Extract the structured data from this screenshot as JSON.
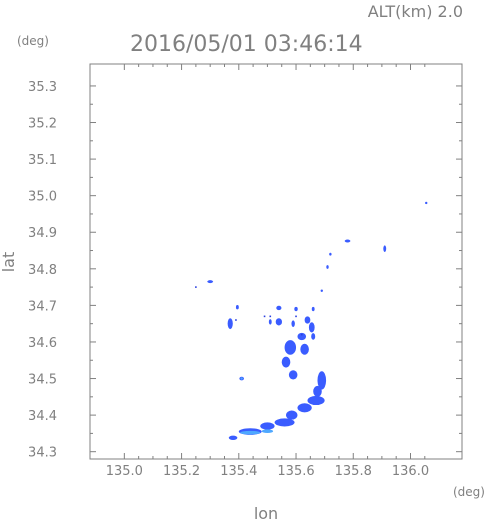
{
  "header": {
    "altitude_label": "ALT(km) 2.0",
    "timestamp": "2016/05/01 03:46:14",
    "lat_unit": "(deg)",
    "lon_unit": "(deg)"
  },
  "chart_data": {
    "type": "scatter",
    "title": "2016/05/01 03:46:14",
    "xlabel": "lon",
    "ylabel": "lat",
    "xlim": [
      134.88,
      136.18
    ],
    "ylim": [
      34.28,
      35.36
    ],
    "xticks": [
      "135.0",
      "135.2",
      "135.4",
      "135.6",
      "135.8",
      "136.0"
    ],
    "yticks": [
      "34.3",
      "34.4",
      "34.5",
      "34.6",
      "34.7",
      "34.8",
      "34.9",
      "35.0",
      "35.1",
      "35.2",
      "35.3"
    ],
    "grid": false,
    "colors": {
      "axis": "#808080",
      "echo_main": "#3a5cff",
      "echo_dark": "#2a3fe0",
      "echo_light": "#4fa8ff"
    },
    "echoes": [
      {
        "lon": 135.3,
        "lat": 34.765,
        "w": 0.02,
        "h": 0.008
      },
      {
        "lon": 135.78,
        "lat": 34.876,
        "w": 0.02,
        "h": 0.008
      },
      {
        "lon": 135.91,
        "lat": 34.855,
        "w": 0.01,
        "h": 0.018
      },
      {
        "lon": 135.72,
        "lat": 34.84,
        "w": 0.005,
        "h": 0.008
      },
      {
        "lon": 135.71,
        "lat": 34.805,
        "w": 0.005,
        "h": 0.01
      },
      {
        "lon": 135.69,
        "lat": 34.74,
        "w": 0.004,
        "h": 0.004
      },
      {
        "lon": 135.395,
        "lat": 34.695,
        "w": 0.01,
        "h": 0.012
      },
      {
        "lon": 135.54,
        "lat": 34.693,
        "w": 0.018,
        "h": 0.012
      },
      {
        "lon": 135.6,
        "lat": 34.69,
        "w": 0.012,
        "h": 0.012
      },
      {
        "lon": 135.66,
        "lat": 34.69,
        "w": 0.01,
        "h": 0.012
      },
      {
        "lon": 135.64,
        "lat": 34.66,
        "w": 0.02,
        "h": 0.02
      },
      {
        "lon": 135.37,
        "lat": 34.65,
        "w": 0.018,
        "h": 0.03
      },
      {
        "lon": 135.51,
        "lat": 34.655,
        "w": 0.01,
        "h": 0.015
      },
      {
        "lon": 135.54,
        "lat": 34.655,
        "w": 0.022,
        "h": 0.02
      },
      {
        "lon": 135.59,
        "lat": 34.65,
        "w": 0.012,
        "h": 0.018
      },
      {
        "lon": 135.655,
        "lat": 34.64,
        "w": 0.02,
        "h": 0.028
      },
      {
        "lon": 135.62,
        "lat": 34.615,
        "w": 0.03,
        "h": 0.02
      },
      {
        "lon": 135.66,
        "lat": 34.615,
        "w": 0.014,
        "h": 0.018
      },
      {
        "lon": 135.58,
        "lat": 34.585,
        "w": 0.04,
        "h": 0.04
      },
      {
        "lon": 135.63,
        "lat": 34.58,
        "w": 0.03,
        "h": 0.03
      },
      {
        "lon": 135.565,
        "lat": 34.545,
        "w": 0.03,
        "h": 0.03
      },
      {
        "lon": 135.59,
        "lat": 34.51,
        "w": 0.03,
        "h": 0.025
      },
      {
        "lon": 135.41,
        "lat": 34.5,
        "w": 0.016,
        "h": 0.01
      },
      {
        "lon": 135.69,
        "lat": 34.495,
        "w": 0.03,
        "h": 0.05
      },
      {
        "lon": 135.675,
        "lat": 34.465,
        "w": 0.03,
        "h": 0.03
      },
      {
        "lon": 135.67,
        "lat": 34.44,
        "w": 0.06,
        "h": 0.025
      },
      {
        "lon": 135.63,
        "lat": 34.42,
        "w": 0.05,
        "h": 0.025
      },
      {
        "lon": 135.585,
        "lat": 34.4,
        "w": 0.04,
        "h": 0.025
      },
      {
        "lon": 135.56,
        "lat": 34.38,
        "w": 0.07,
        "h": 0.022
      },
      {
        "lon": 135.5,
        "lat": 34.37,
        "w": 0.05,
        "h": 0.02
      },
      {
        "lon": 135.44,
        "lat": 34.355,
        "w": 0.08,
        "h": 0.018
      },
      {
        "lon": 135.38,
        "lat": 34.338,
        "w": 0.03,
        "h": 0.012
      },
      {
        "lon": 136.055,
        "lat": 34.98,
        "w": 0.004,
        "h": 0.006
      }
    ],
    "light_echoes": [
      {
        "lon": 135.41,
        "lat": 34.5,
        "w": 0.006,
        "h": 0.006
      },
      {
        "lon": 135.44,
        "lat": 34.352,
        "w": 0.07,
        "h": 0.01
      },
      {
        "lon": 135.5,
        "lat": 34.356,
        "w": 0.04,
        "h": 0.01
      }
    ],
    "dots": [
      {
        "lon": 135.25,
        "lat": 34.75
      },
      {
        "lon": 135.39,
        "lat": 34.66
      },
      {
        "lon": 135.51,
        "lat": 34.67
      },
      {
        "lon": 135.49,
        "lat": 34.67
      },
      {
        "lon": 135.6,
        "lat": 34.67
      },
      {
        "lon": 135.62,
        "lat": 34.62
      }
    ]
  }
}
